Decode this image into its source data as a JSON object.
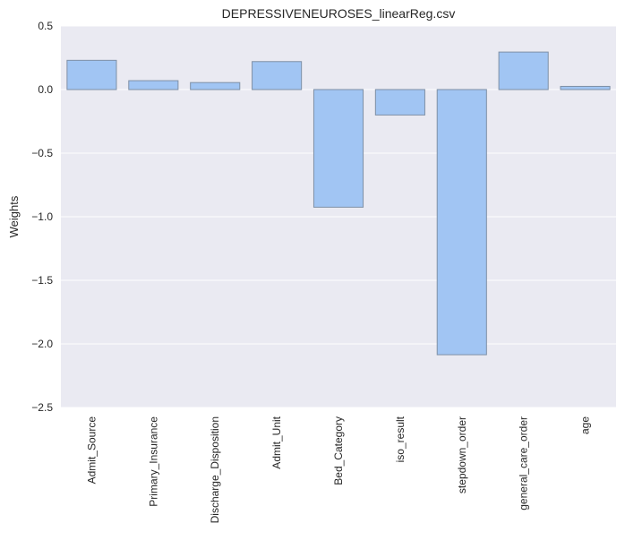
{
  "chart_data": {
    "type": "bar",
    "title": "DEPRESSIVENEUROSES_linearReg.csv",
    "xlabel": "",
    "ylabel": "Weights",
    "categories": [
      "Admit_Source",
      "Primary_Insurance",
      "Discharge_Disposition",
      "Admit_Unit",
      "Bed_Category",
      "iso_result",
      "stepdown_order",
      "general_care_order",
      "age"
    ],
    "values": [
      0.23,
      0.07,
      0.055,
      0.22,
      -0.925,
      -0.2,
      -2.085,
      0.295,
      0.025
    ],
    "ylim": [
      -2.5,
      0.5
    ],
    "yticks": [
      0.5,
      0.0,
      -0.5,
      -1.0,
      -1.5,
      -2.0,
      -2.5
    ],
    "ytick_labels": [
      "0.5",
      "0.0",
      "−0.5",
      "−1.0",
      "−1.5",
      "−2.0",
      "−2.5"
    ],
    "grid": true,
    "legend": "none",
    "colors": {
      "background": "#eaeaf2",
      "bar_fill": "#a1c5f3",
      "bar_edge": "#7f90a6",
      "grid": "#ffffff"
    }
  }
}
